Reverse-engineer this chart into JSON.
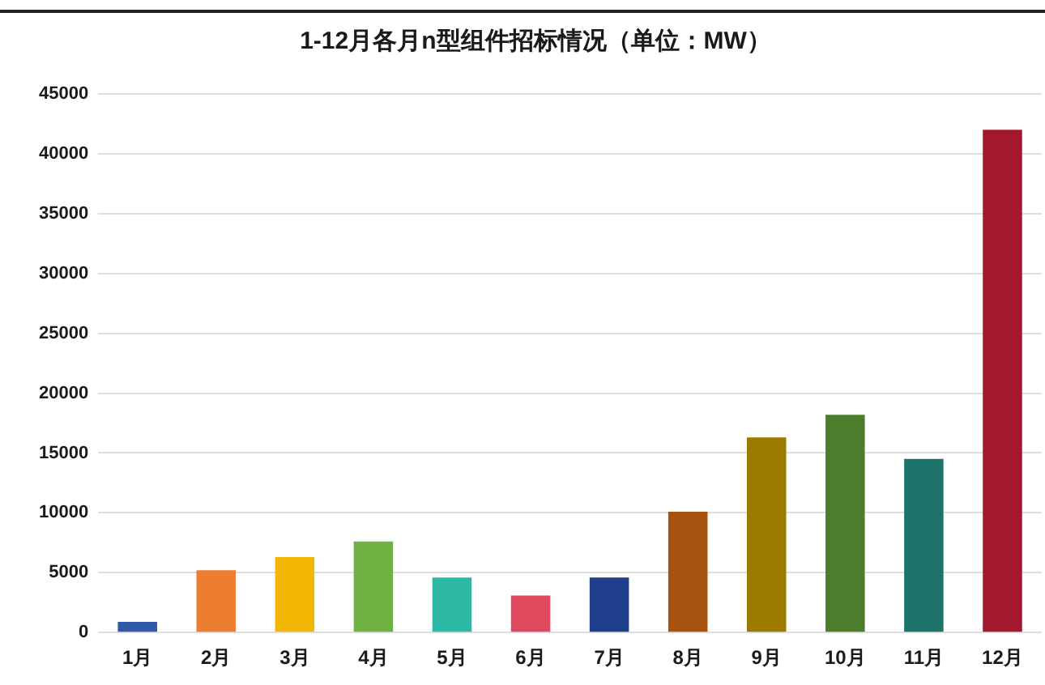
{
  "chart_data": {
    "type": "bar",
    "title": "1-12月各月n型组件招标情况（单位：MW）",
    "categories": [
      "1月",
      "2月",
      "3月",
      "4月",
      "5月",
      "6月",
      "7月",
      "8月",
      "9月",
      "10月",
      "11月",
      "12月"
    ],
    "values": [
      900,
      5200,
      6300,
      7600,
      4600,
      3100,
      4600,
      10100,
      16300,
      18200,
      14500,
      42000
    ],
    "colors": [
      "#2f5aa8",
      "#ed7d31",
      "#f2b705",
      "#6fb040",
      "#2bb8a5",
      "#e04a5e",
      "#1f3f8c",
      "#a8520f",
      "#9c7a00",
      "#4b7d2c",
      "#1d7369",
      "#a3182c"
    ],
    "ylim": [
      0,
      45000
    ],
    "yticks": [
      0,
      5000,
      10000,
      15000,
      20000,
      25000,
      30000,
      35000,
      40000,
      45000
    ],
    "grid": "y"
  }
}
